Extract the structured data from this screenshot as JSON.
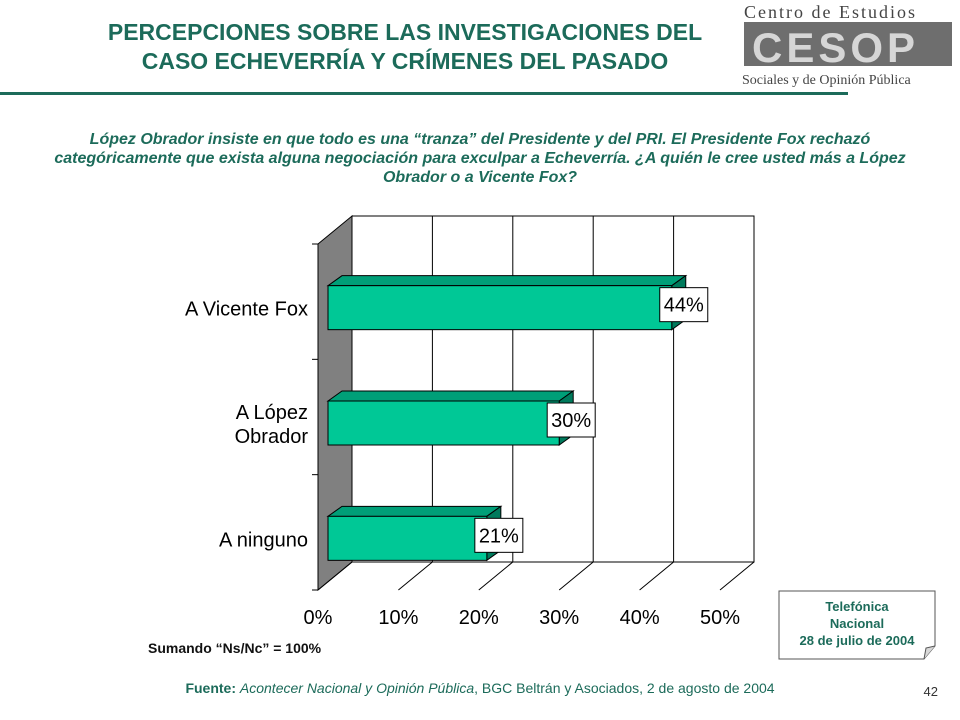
{
  "header": {
    "title_line1": "PERCEPCIONES SOBRE LAS INVESTIGACIONES DEL",
    "title_line2": "CASO ECHEVERRÍA Y CRÍMENES DEL PASADO"
  },
  "logo": {
    "line1": "Centro de Estudios",
    "mark": "CESOP",
    "line2": "Sociales y de Opinión Pública"
  },
  "question": "López Obrador insiste en que todo es una “tranza” del Presidente y del PRI. El Presidente Fox rechazó categóricamente que exista alguna negociación para exculpar a Echeverría. ¿A quién le cree usted más a López Obrador o a Vicente Fox?",
  "chart_data": {
    "type": "bar",
    "orientation": "horizontal",
    "categories": [
      "A Vicente Fox",
      "A López Obrador",
      "A ninguno"
    ],
    "values": [
      44,
      30,
      21
    ],
    "data_labels": [
      "44%",
      "30%",
      "21%"
    ],
    "xlim": [
      0,
      50
    ],
    "xticks": [
      "0%",
      "10%",
      "20%",
      "30%",
      "40%",
      "50%"
    ],
    "grid": true,
    "bar_color": "#00c896",
    "wall_color": "#808080"
  },
  "note": "Sumando “Ns/Nc” = 100%",
  "survey": {
    "line1": "Telefónica",
    "line2": "Nacional",
    "line3": "28 de julio de 2004"
  },
  "footer": {
    "source_label": "Fuente:",
    "source_italic": "Acontecer Nacional y Opinión Pública",
    "source_rest": ", BGC Beltrán y Asociados, 2 de agosto de 2004",
    "page": "42"
  }
}
